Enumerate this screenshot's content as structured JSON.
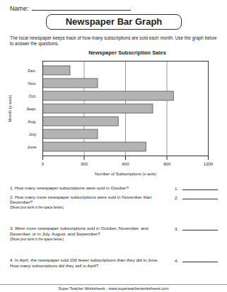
{
  "name_label": "Name:",
  "header": {
    "title": "Newspaper Bar Graph",
    "intro": "The local newspaper keeps track of how many subscriptions are sold each month. Use the graph below to answer the questions."
  },
  "chart_data": {
    "type": "bar",
    "orientation": "horizontal",
    "title": "Newspaper Subscription Sales",
    "x_label": "Number of Subscriptions (x-axis)",
    "y_label": "Month (y-axis)",
    "categories": [
      "Dec.",
      "Nov.",
      "Oct.",
      "Sept.",
      "Aug.",
      "July",
      "June"
    ],
    "values": [
      200,
      400,
      950,
      800,
      550,
      400,
      750
    ],
    "color": "#b3b3b3",
    "xlim": [
      0,
      1200
    ],
    "xticks": [
      0,
      300,
      600,
      900,
      1200
    ],
    "grid": true
  },
  "questions": [
    {
      "number": "1.",
      "text": "How many newspaper subscriptions were sold in October?"
    },
    {
      "number": "2.",
      "text": "How many more newspaper subscriptions were sold in November than December?",
      "note": "(Show your work in the space below.)"
    },
    {
      "number": "3.",
      "text": "Were more newspaper subscriptions sold in October, November, and December, or in July, August, and September?",
      "note": "(Show your work in the space below.)"
    },
    {
      "number": "4.",
      "text": "In April, the newspaper sold 100 fewer subscriptions than they did in June. How many subscriptions did they sell in April?"
    }
  ],
  "footer": "Super Teacher Worksheets - www.superteacherworksheets.com"
}
